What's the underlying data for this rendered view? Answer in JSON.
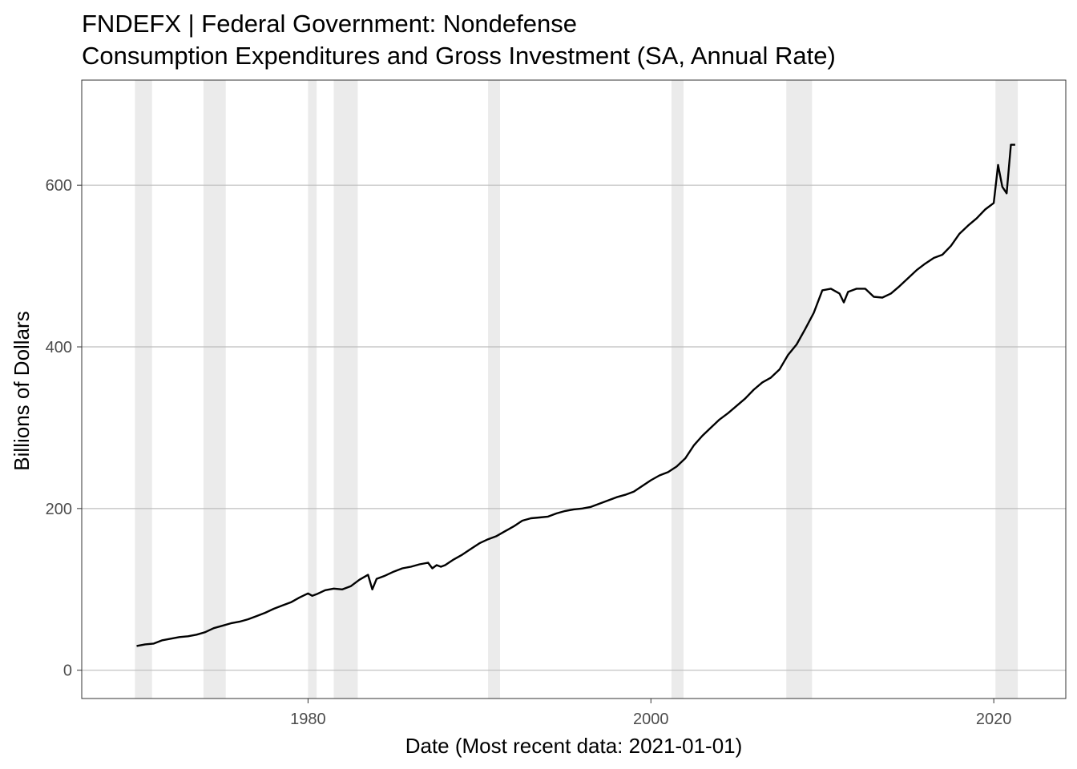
{
  "chart_data": {
    "type": "line",
    "title": "FNDEFX | Federal Government: Nondefense",
    "subtitle": "Consumption Expenditures and Gross Investment (SA, Annual Rate)",
    "xlabel": "Date (Most recent data: 2021-01-01)",
    "ylabel": "Billions of Dollars",
    "xlim": [
      1966.8,
      2024.2
    ],
    "ylim": [
      -35,
      730
    ],
    "x_ticks": [
      1980,
      2000,
      2020
    ],
    "y_ticks": [
      0,
      200,
      400,
      600
    ],
    "grid": "horizontal",
    "legend": "none",
    "colors": {
      "line": "#000000",
      "recession": "#ebebeb",
      "grid": "#bdbdbd",
      "panel_border": "#333333"
    },
    "recessions": [
      {
        "start": 1969.9,
        "end": 1970.9
      },
      {
        "start": 1973.9,
        "end": 1975.2
      },
      {
        "start": 1980.0,
        "end": 1980.5
      },
      {
        "start": 1981.5,
        "end": 1982.9
      },
      {
        "start": 1990.5,
        "end": 1991.2
      },
      {
        "start": 2001.2,
        "end": 2001.9
      },
      {
        "start": 2007.9,
        "end": 2009.4
      },
      {
        "start": 2020.1,
        "end": 2021.4
      }
    ],
    "series": [
      {
        "x": [
          1970.0,
          1970.5,
          1971.0,
          1971.5,
          1972.0,
          1972.5,
          1973.0,
          1973.5,
          1974.0,
          1974.5,
          1975.0,
          1975.5,
          1976.0,
          1976.5,
          1977.0,
          1977.5,
          1978.0,
          1978.5,
          1979.0,
          1979.5,
          1980.0,
          1980.25,
          1980.5,
          1981.0,
          1981.5,
          1982.0,
          1982.5,
          1983.0,
          1983.5,
          1983.75,
          1984.0,
          1984.5,
          1985.0,
          1985.5,
          1986.0,
          1986.5,
          1987.0,
          1987.25,
          1987.5,
          1987.75,
          1988.0,
          1988.5,
          1989.0,
          1989.5,
          1990.0,
          1990.5,
          1991.0,
          1991.5,
          1992.0,
          1992.5,
          1993.0,
          1993.5,
          1994.0,
          1994.5,
          1995.0,
          1995.5,
          1996.0,
          1996.5,
          1997.0,
          1997.5,
          1998.0,
          1998.5,
          1999.0,
          1999.5,
          2000.0,
          2000.5,
          2001.0,
          2001.5,
          2002.0,
          2002.5,
          2003.0,
          2003.5,
          2004.0,
          2004.5,
          2005.0,
          2005.5,
          2006.0,
          2006.5,
          2007.0,
          2007.5,
          2008.0,
          2008.5,
          2009.0,
          2009.5,
          2010.0,
          2010.5,
          2011.0,
          2011.25,
          2011.5,
          2012.0,
          2012.5,
          2013.0,
          2013.5,
          2014.0,
          2014.5,
          2015.0,
          2015.5,
          2016.0,
          2016.5,
          2017.0,
          2017.5,
          2018.0,
          2018.5,
          2019.0,
          2019.5,
          2020.0,
          2020.25,
          2020.5,
          2020.75,
          2021.0,
          2021.25
        ],
        "y": [
          30,
          32,
          33,
          37,
          39,
          41,
          42,
          44,
          47,
          52,
          55,
          58,
          60,
          63,
          67,
          71,
          76,
          80,
          84,
          90,
          95,
          92,
          94,
          99,
          101,
          100,
          104,
          112,
          118,
          100,
          113,
          117,
          122,
          126,
          128,
          131,
          133,
          126,
          130,
          128,
          130,
          137,
          143,
          150,
          157,
          162,
          166,
          172,
          178,
          185,
          188,
          189,
          190,
          194,
          197,
          199,
          200,
          202,
          206,
          210,
          214,
          217,
          221,
          228,
          235,
          241,
          245,
          252,
          262,
          278,
          290,
          300,
          310,
          318,
          327,
          336,
          347,
          356,
          362,
          372,
          390,
          403,
          422,
          442,
          470,
          472,
          466,
          455,
          468,
          472,
          472,
          462,
          461,
          466,
          475,
          485,
          495,
          503,
          510,
          514,
          525,
          540,
          550,
          559,
          570,
          578,
          625,
          598,
          590,
          650,
          650
        ]
      }
    ]
  }
}
